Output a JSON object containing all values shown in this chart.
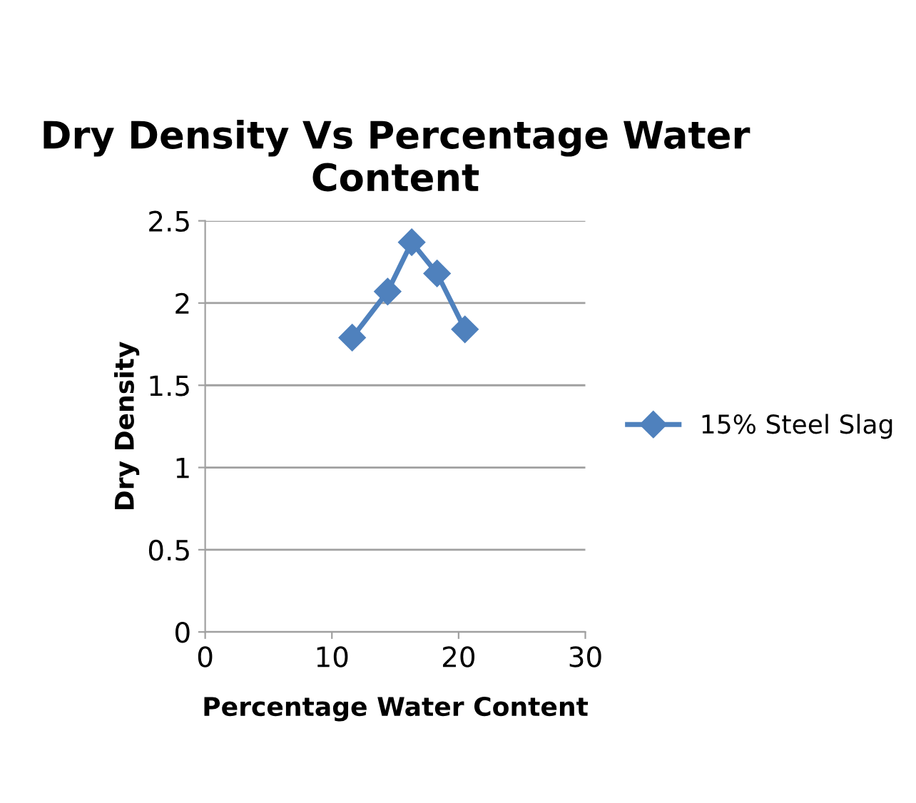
{
  "chart_data": {
    "type": "line",
    "title": "Dry Density Vs Percentage Water Content",
    "xlabel": "Percentage Water Content",
    "ylabel": "Dry Density",
    "series": [
      {
        "name": "15% Steel Slag",
        "color": "#4f81bd",
        "x": [
          11.6,
          14.4,
          16.3,
          18.3,
          20.5
        ],
        "values": [
          1.79,
          2.07,
          2.37,
          2.18,
          1.84
        ]
      }
    ],
    "xlim": [
      0,
      30
    ],
    "xticks": [
      0,
      10,
      20,
      30
    ],
    "ylim": [
      0,
      2.5
    ],
    "yticks": [
      0,
      0.5,
      1,
      1.5,
      2,
      2.5
    ],
    "grid": "y",
    "legend": "right",
    "marker": "diamond",
    "line_style": "solid"
  }
}
